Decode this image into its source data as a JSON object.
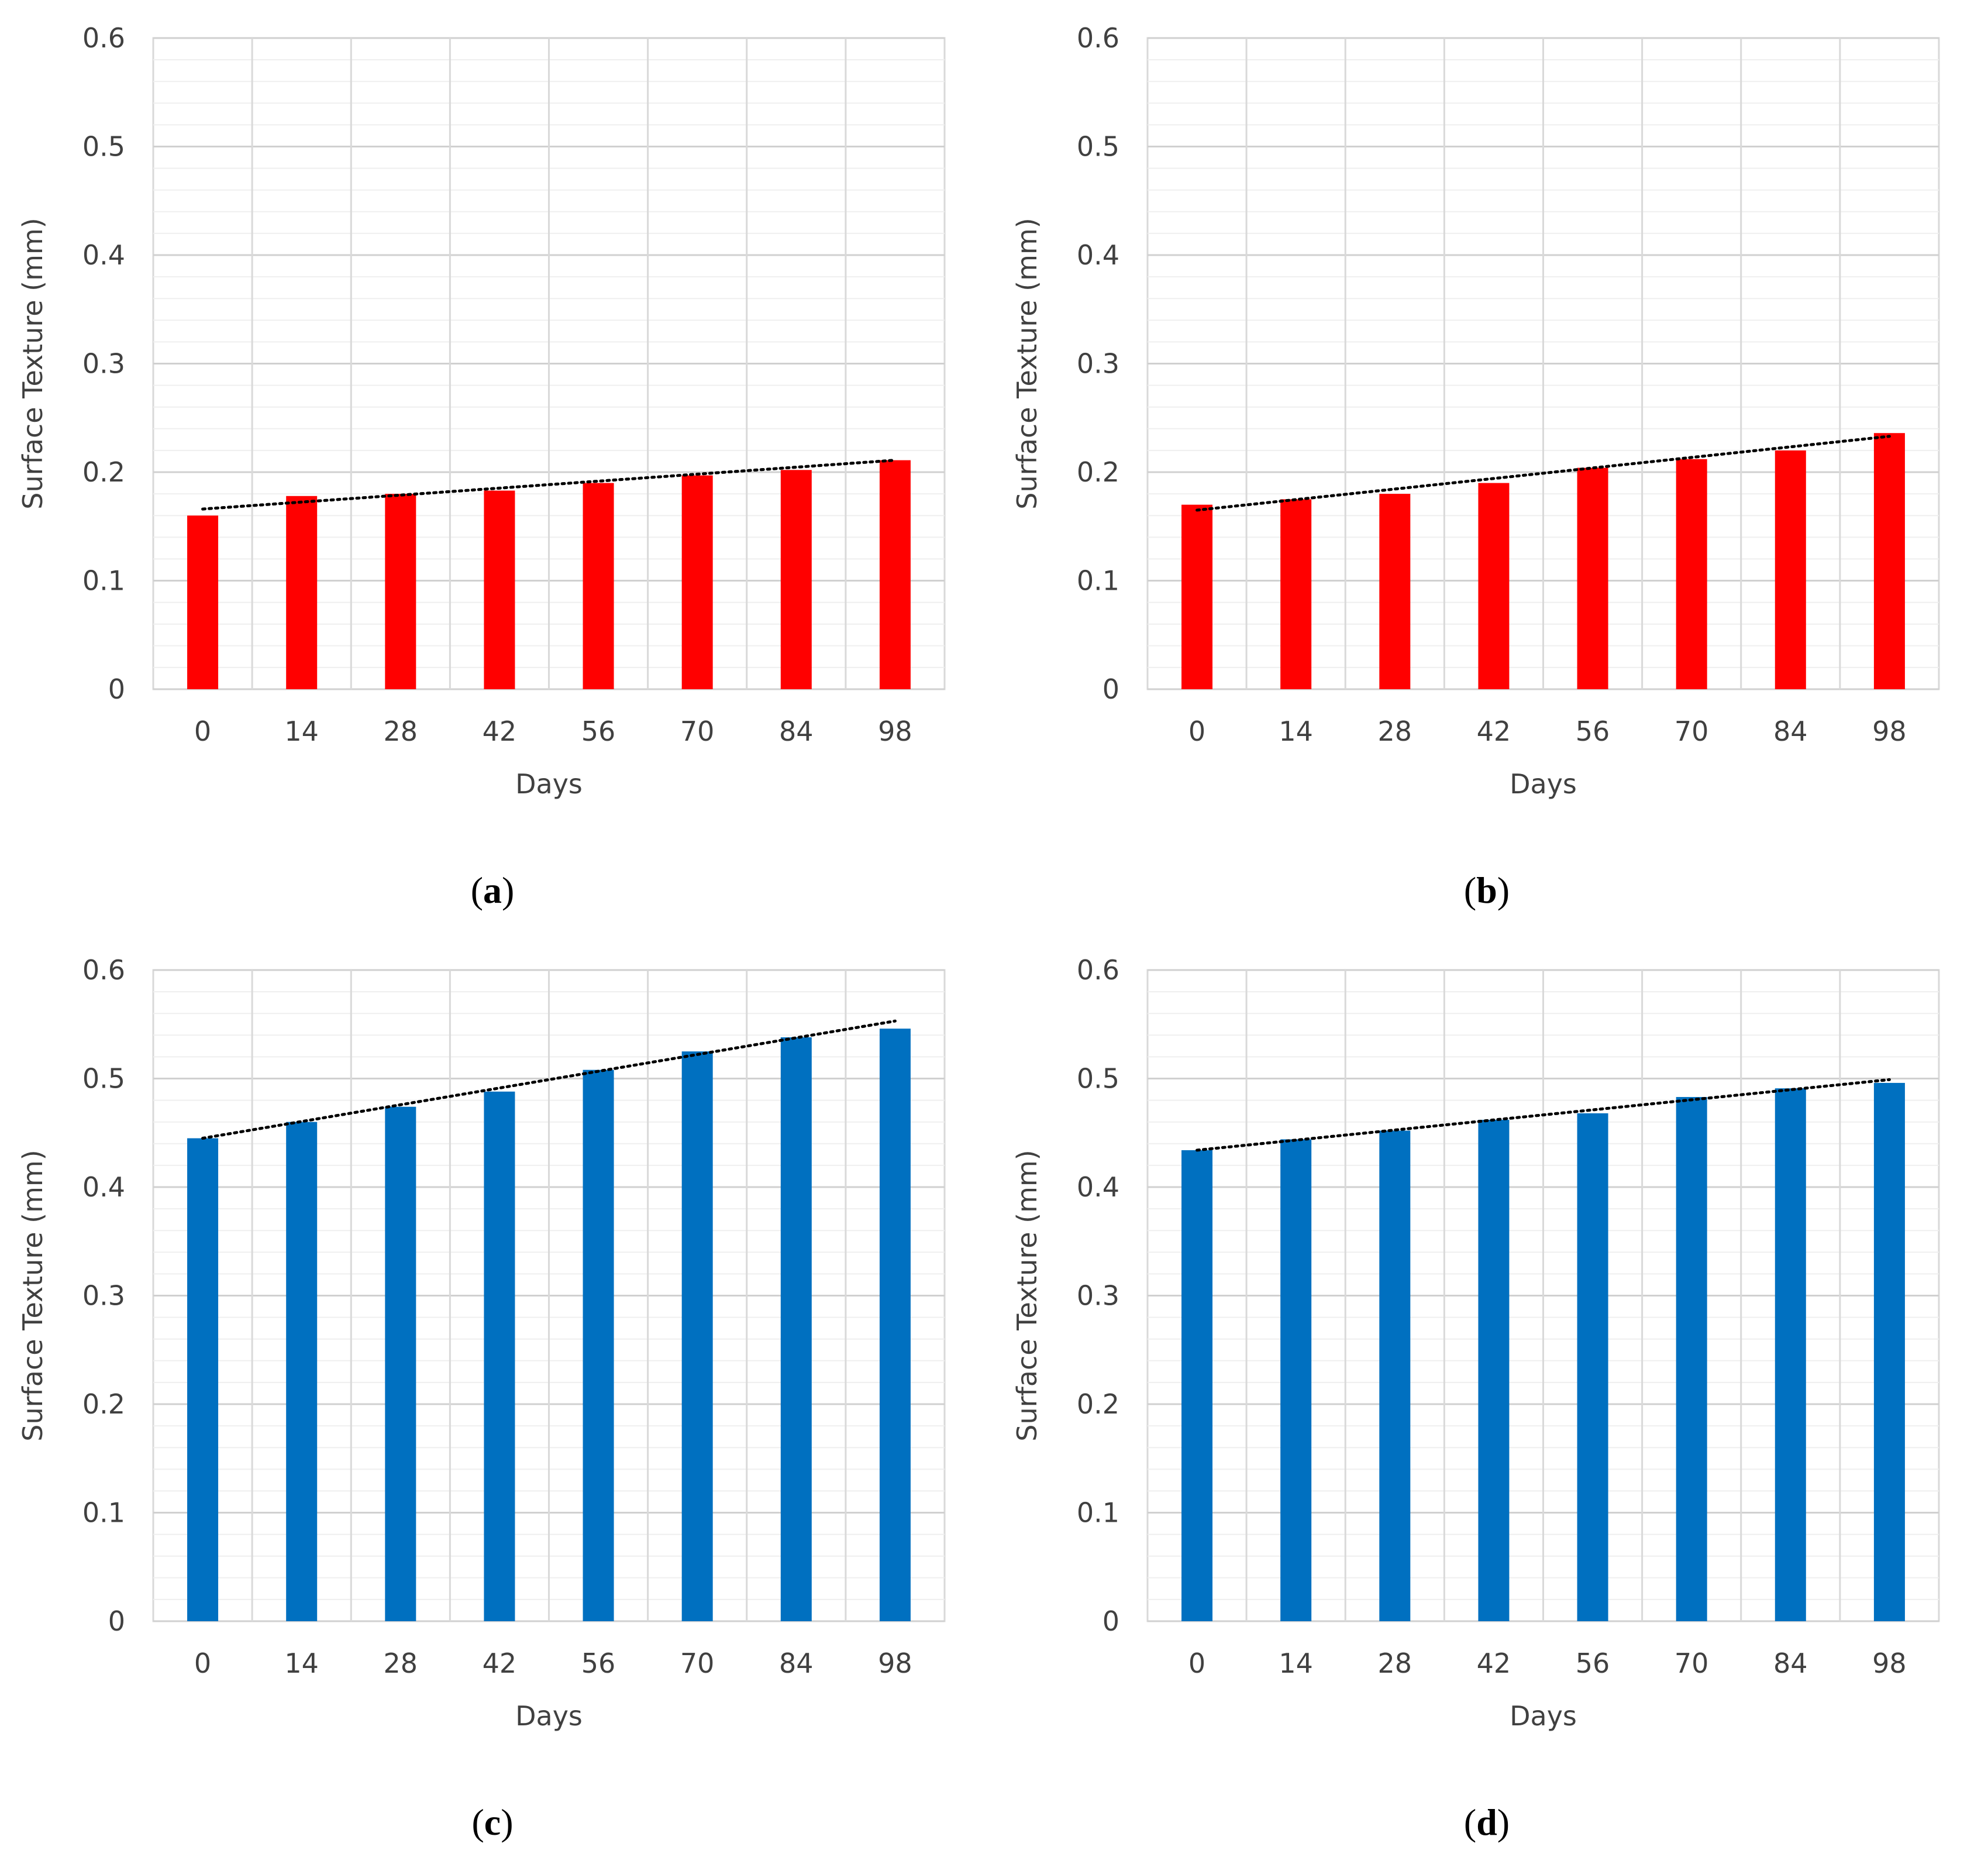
{
  "chart_data": [
    {
      "id": "a",
      "type": "bar",
      "caption_label": "a",
      "categories": [
        "0",
        "14",
        "28",
        "42",
        "56",
        "70",
        "84",
        "98"
      ],
      "values": [
        0.16,
        0.178,
        0.18,
        0.183,
        0.19,
        0.197,
        0.202,
        0.211
      ],
      "trendline": {
        "type": "linear",
        "start": 0.166,
        "end": 0.211,
        "style": "dotted"
      },
      "xlabel": "Days",
      "ylabel": "Surface Texture (mm)",
      "ylim": [
        0,
        0.6
      ],
      "yticks": [
        "0",
        "0.1",
        "0.2",
        "0.3",
        "0.4",
        "0.5",
        "0.6"
      ],
      "color": "#ff0000",
      "grid": true
    },
    {
      "id": "b",
      "type": "bar",
      "caption_label": "b",
      "categories": [
        "0",
        "14",
        "28",
        "42",
        "56",
        "70",
        "84",
        "98"
      ],
      "values": [
        0.17,
        0.175,
        0.18,
        0.19,
        0.204,
        0.212,
        0.22,
        0.236
      ],
      "trendline": {
        "type": "linear",
        "start": 0.165,
        "end": 0.233,
        "style": "dotted"
      },
      "xlabel": "Days",
      "ylabel": "Surface Texture (mm)",
      "ylim": [
        0,
        0.6
      ],
      "yticks": [
        "0",
        "0.1",
        "0.2",
        "0.3",
        "0.4",
        "0.5",
        "0.6"
      ],
      "color": "#ff0000",
      "grid": true
    },
    {
      "id": "c",
      "type": "bar",
      "caption_label": "c",
      "categories": [
        "0",
        "14",
        "28",
        "42",
        "56",
        "70",
        "84",
        "98"
      ],
      "values": [
        0.445,
        0.46,
        0.474,
        0.488,
        0.508,
        0.525,
        0.538,
        0.546
      ],
      "trendline": {
        "type": "linear",
        "start": 0.445,
        "end": 0.553,
        "style": "dotted"
      },
      "xlabel": "Days",
      "ylabel": "Surface Texture (mm)",
      "ylim": [
        0,
        0.6
      ],
      "yticks": [
        "0",
        "0.1",
        "0.2",
        "0.3",
        "0.4",
        "0.5",
        "0.6"
      ],
      "color": "#0070c0",
      "grid": true
    },
    {
      "id": "d",
      "type": "bar",
      "caption_label": "d",
      "categories": [
        "0",
        "14",
        "28",
        "42",
        "56",
        "70",
        "84",
        "98"
      ],
      "values": [
        0.434,
        0.444,
        0.452,
        0.462,
        0.468,
        0.483,
        0.491,
        0.496
      ],
      "trendline": {
        "type": "linear",
        "start": 0.434,
        "end": 0.499,
        "style": "dotted"
      },
      "xlabel": "Days",
      "ylabel": "Surface Texture (mm)",
      "ylim": [
        0,
        0.6
      ],
      "yticks": [
        "0",
        "0.1",
        "0.2",
        "0.3",
        "0.4",
        "0.5",
        "0.6"
      ],
      "color": "#0070c0",
      "grid": true
    }
  ]
}
